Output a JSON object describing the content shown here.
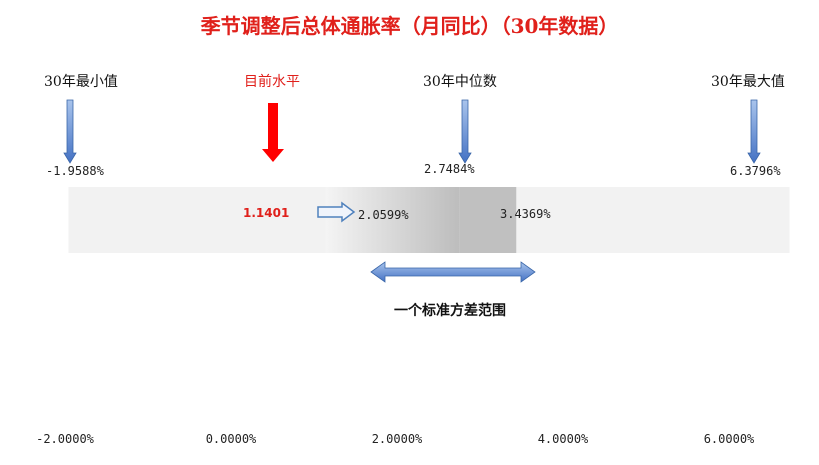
{
  "chart_data": {
    "type": "range",
    "title": "季节调整后总体通胀率（月同比）（30年数据）",
    "headers": {
      "min": "30年最小值",
      "current": "目前水平",
      "median": "30年中位数",
      "max": "30年最大值"
    },
    "values": {
      "min": "-1.9588%",
      "current": "1.1401",
      "sd_low": "2.0599%",
      "median": "2.7484%",
      "sd_high": "3.4369%",
      "max": "6.3796%"
    },
    "numeric": {
      "min": -1.9588,
      "current": 1.1401,
      "sd_low": 2.0599,
      "median": 2.7484,
      "sd_high": 3.4369,
      "max": 6.3796
    },
    "sd_range_label": "一个标准方差范围",
    "xlim": [
      -2,
      6
    ],
    "xticks": [
      "-2.0000%",
      "0.0000%",
      "2.0000%",
      "4.0000%",
      "6.0000%"
    ],
    "xtick_values": [
      -2,
      0,
      2,
      4,
      6
    ],
    "colors": {
      "title": "#e0201b",
      "current_arrow": "#ff0000",
      "blue_arrow": "#4f81bd",
      "band_light": "#f2f2f2",
      "band_dark": "#bfbfbf"
    }
  }
}
